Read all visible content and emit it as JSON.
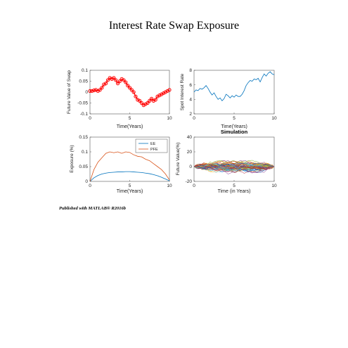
{
  "title": "Interest Rate Swap Exposure",
  "footer": "Published with MATLAB® R2016b",
  "chart_data": [
    {
      "type": "line",
      "id": "swap",
      "xlabel": "Time(Years)",
      "ylabel": "Future Value of Swap",
      "xlim": [
        0,
        10
      ],
      "ylim": [
        -0.1,
        0.1
      ],
      "xticks": [
        "0",
        "5",
        "10"
      ],
      "yticks": [
        "0.1",
        "0.05",
        "0",
        "-0.05",
        "-0.1"
      ],
      "series": [
        {
          "color": "#ff0000",
          "marker": "circle",
          "x": [
            0,
            0.25,
            0.5,
            0.75,
            1,
            1.25,
            1.5,
            1.75,
            2,
            2.25,
            2.5,
            2.75,
            3,
            3.25,
            3.5,
            3.75,
            4,
            4.25,
            4.5,
            4.75,
            5,
            5.25,
            5.5,
            5.75,
            6,
            6.25,
            6.5,
            6.75,
            7,
            7.25,
            7.5,
            7.75,
            8,
            8.25,
            8.5,
            8.75,
            9,
            9.25,
            9.5,
            9.75,
            10
          ],
          "y": [
            0.005,
            0.005,
            0.008,
            0.01,
            0.005,
            0.01,
            0.02,
            0.035,
            0.04,
            0.055,
            0.065,
            0.06,
            0.065,
            0.055,
            0.04,
            0.05,
            0.06,
            0.055,
            0.045,
            0.03,
            0.02,
            0.01,
            0.0,
            -0.02,
            -0.035,
            -0.04,
            -0.05,
            -0.06,
            -0.055,
            -0.05,
            -0.04,
            -0.03,
            -0.04,
            -0.035,
            -0.02,
            -0.015,
            -0.01,
            -0.005,
            0.0,
            0.005,
            0.01
          ]
        }
      ]
    },
    {
      "type": "line",
      "id": "rate",
      "xlabel": "Time(Years)",
      "ylabel": "Spot Interest Rate",
      "xlim": [
        0,
        10
      ],
      "ylim": [
        2,
        8
      ],
      "xticks": [
        "0",
        "5",
        "10"
      ],
      "yticks": [
        "8",
        "6",
        "4",
        "2"
      ],
      "series": [
        {
          "color": "#0072bd",
          "x": [
            0,
            0.25,
            0.5,
            0.75,
            1,
            1.25,
            1.5,
            1.75,
            2,
            2.25,
            2.5,
            2.75,
            3,
            3.25,
            3.5,
            3.75,
            4,
            4.25,
            4.5,
            4.75,
            5,
            5.25,
            5.5,
            5.75,
            6,
            6.25,
            6.5,
            6.75,
            7,
            7.25,
            7.5,
            7.75,
            8,
            8.25,
            8.5,
            8.75,
            9,
            9.25,
            9.5,
            9.75,
            10
          ],
          "y": [
            5.0,
            5.3,
            5.2,
            5.5,
            5.4,
            5.6,
            5.9,
            5.5,
            5.0,
            4.6,
            4.9,
            4.4,
            4.0,
            4.2,
            3.8,
            4.1,
            4.7,
            4.5,
            4.2,
            4.5,
            4.3,
            4.6,
            4.4,
            4.4,
            4.7,
            5.2,
            5.9,
            6.3,
            6.6,
            6.5,
            6.8,
            6.7,
            6.9,
            6.4,
            7.0,
            7.5,
            7.2,
            7.6,
            7.8,
            7.5,
            7.4
          ]
        }
      ]
    },
    {
      "type": "line",
      "id": "exposure",
      "xlabel": "Time(Years)",
      "ylabel": "Exposure (%)",
      "xlim": [
        0,
        10
      ],
      "ylim": [
        0,
        0.15
      ],
      "xticks": [
        "0",
        "5",
        "10"
      ],
      "yticks": [
        "0.15",
        "0.1",
        "0.05",
        "0"
      ],
      "legend": {
        "position": "top-right",
        "entries": [
          "EE",
          "PFE"
        ]
      },
      "series": [
        {
          "name": "EE",
          "color": "#0072bd",
          "x": [
            0,
            0.5,
            1,
            1.5,
            2,
            2.5,
            3,
            3.5,
            4,
            4.5,
            5,
            5.5,
            6,
            6.5,
            7,
            7.5,
            8,
            8.5,
            9,
            9.5,
            10
          ],
          "y": [
            0.0,
            0.012,
            0.02,
            0.025,
            0.028,
            0.03,
            0.031,
            0.032,
            0.032,
            0.033,
            0.033,
            0.032,
            0.031,
            0.03,
            0.028,
            0.026,
            0.023,
            0.019,
            0.014,
            0.008,
            0.002
          ]
        },
        {
          "name": "PFE",
          "color": "#d95319",
          "x": [
            0,
            0.5,
            1,
            1.5,
            2,
            2.5,
            3,
            3.5,
            4,
            4.5,
            5,
            5.5,
            6,
            6.5,
            7,
            7.5,
            8,
            8.5,
            9,
            9.5,
            10
          ],
          "y": [
            0.0,
            0.04,
            0.065,
            0.08,
            0.095,
            0.1,
            0.097,
            0.1,
            0.095,
            0.1,
            0.098,
            0.09,
            0.085,
            0.083,
            0.075,
            0.07,
            0.06,
            0.05,
            0.04,
            0.025,
            0.005
          ]
        }
      ]
    },
    {
      "type": "line",
      "id": "simulation",
      "title": "Simulation",
      "xlabel": "Time (in Years)",
      "ylabel": "Future Value(%)",
      "xlim": [
        0,
        10
      ],
      "ylim": [
        -20,
        40
      ],
      "xticks": [
        "0",
        "5",
        "10"
      ],
      "yticks": [
        "40",
        "20",
        "0",
        "-20"
      ],
      "paths": 60,
      "note_visual": "many overlapping multicolored simulated paths fanning out from 0 and converging back to 0 at year 10",
      "colors": [
        "#0072bd",
        "#d95319",
        "#edb120",
        "#7e2f8e",
        "#77ac30",
        "#4dbeee",
        "#a2142f"
      ]
    }
  ]
}
